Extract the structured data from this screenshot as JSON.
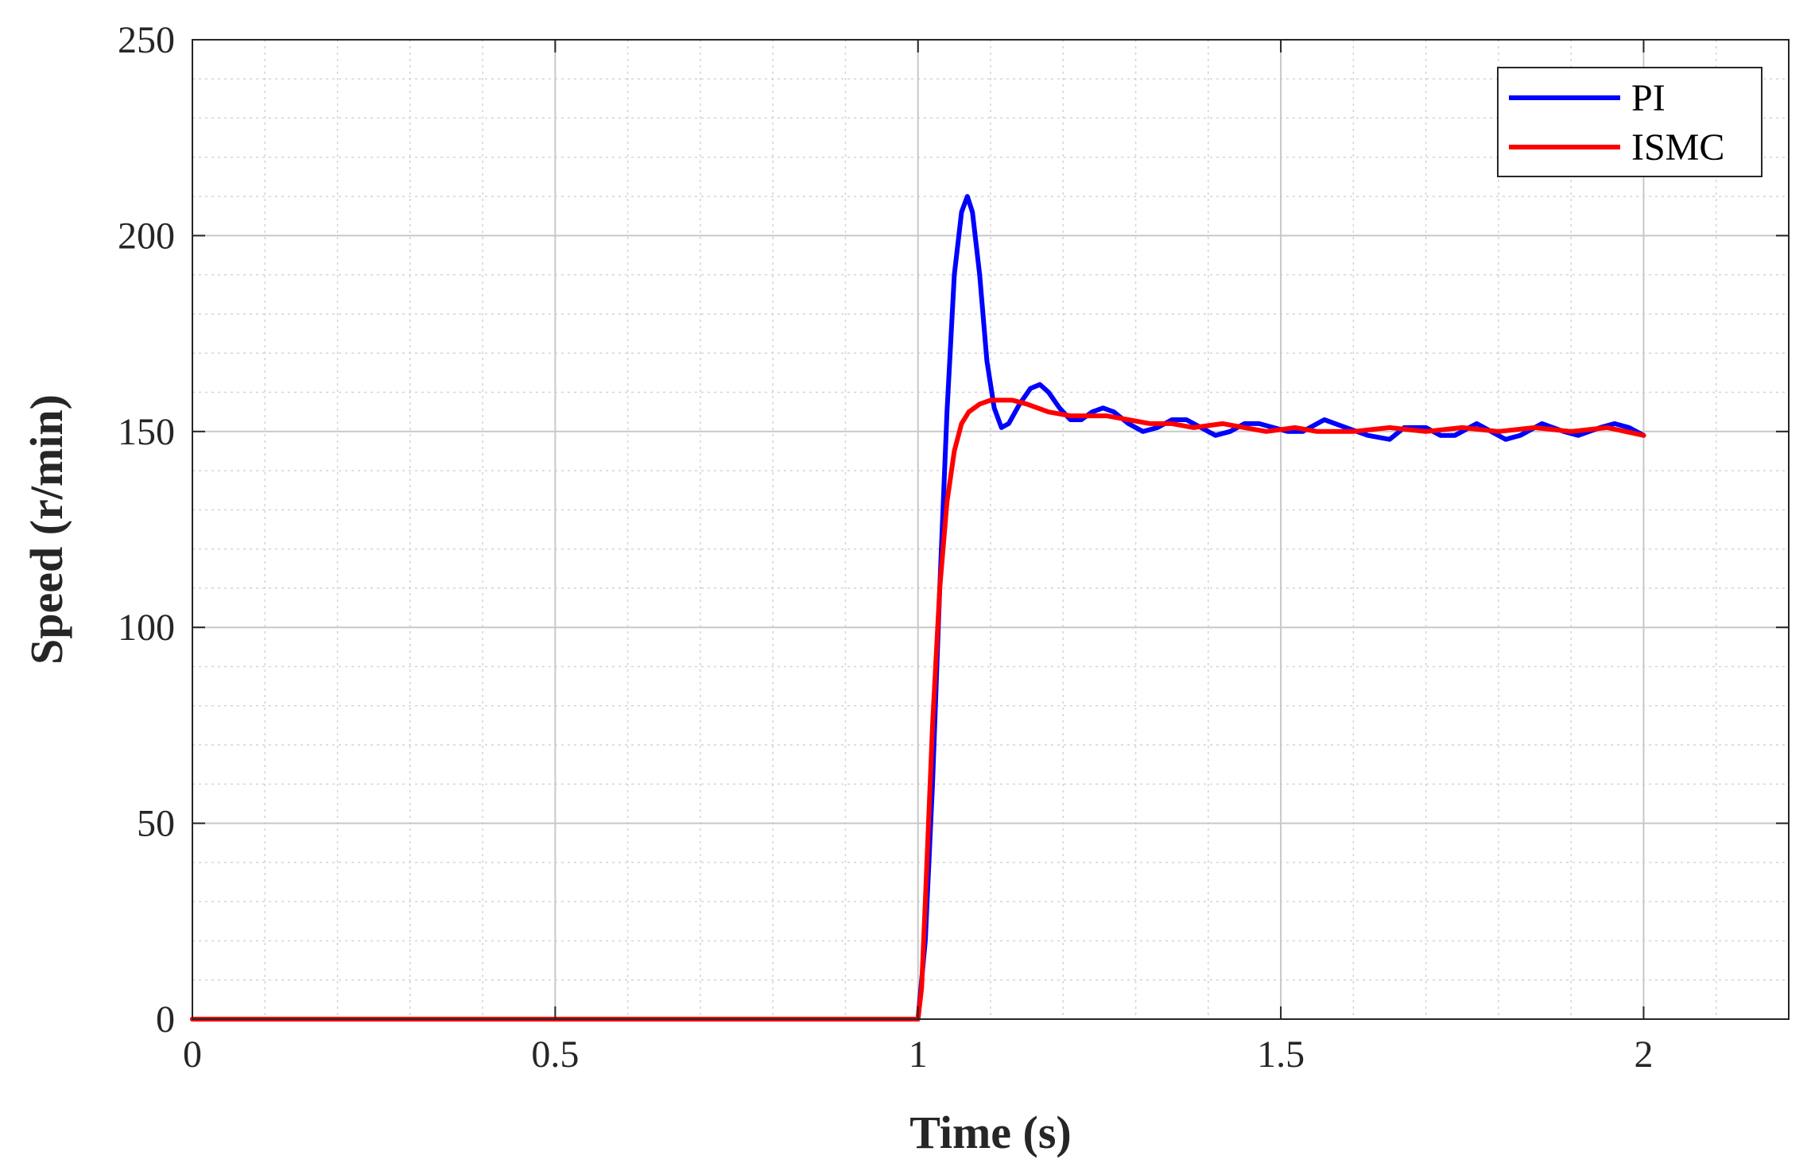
{
  "chart_data": {
    "type": "line",
    "title": "",
    "xlabel": "Time (s)",
    "ylabel": "Speed (r/min)",
    "xlim": [
      0,
      2.2
    ],
    "ylim": [
      0,
      250
    ],
    "x_ticks": [
      0,
      0.5,
      1,
      1.5,
      2
    ],
    "x_tick_labels": [
      "0",
      "0.5",
      "1",
      "1.5",
      "2"
    ],
    "y_ticks": [
      0,
      50,
      100,
      150,
      200,
      250
    ],
    "y_tick_labels": [
      "0",
      "50",
      "100",
      "150",
      "200",
      "250"
    ],
    "grid": true,
    "minor_grid": true,
    "legend_position": "top-right",
    "series": [
      {
        "name": "PI",
        "color": "#0000ff",
        "points": [
          [
            0,
            0
          ],
          [
            1.0,
            0
          ],
          [
            1.01,
            20
          ],
          [
            1.02,
            60
          ],
          [
            1.03,
            110
          ],
          [
            1.04,
            155
          ],
          [
            1.05,
            190
          ],
          [
            1.06,
            206
          ],
          [
            1.068,
            210
          ],
          [
            1.075,
            206
          ],
          [
            1.085,
            190
          ],
          [
            1.095,
            168
          ],
          [
            1.105,
            156
          ],
          [
            1.115,
            151
          ],
          [
            1.125,
            152
          ],
          [
            1.14,
            157
          ],
          [
            1.155,
            161
          ],
          [
            1.168,
            162
          ],
          [
            1.18,
            160
          ],
          [
            1.195,
            156
          ],
          [
            1.21,
            153
          ],
          [
            1.225,
            153
          ],
          [
            1.24,
            155
          ],
          [
            1.255,
            156
          ],
          [
            1.27,
            155
          ],
          [
            1.29,
            152
          ],
          [
            1.31,
            150
          ],
          [
            1.33,
            151
          ],
          [
            1.35,
            153
          ],
          [
            1.37,
            153
          ],
          [
            1.39,
            151
          ],
          [
            1.41,
            149
          ],
          [
            1.43,
            150
          ],
          [
            1.45,
            152
          ],
          [
            1.47,
            152
          ],
          [
            1.49,
            151
          ],
          [
            1.51,
            150
          ],
          [
            1.53,
            150
          ],
          [
            1.56,
            153
          ],
          [
            1.59,
            151
          ],
          [
            1.62,
            149
          ],
          [
            1.65,
            148
          ],
          [
            1.67,
            151
          ],
          [
            1.7,
            151
          ],
          [
            1.72,
            149
          ],
          [
            1.74,
            149
          ],
          [
            1.77,
            152
          ],
          [
            1.79,
            150
          ],
          [
            1.81,
            148
          ],
          [
            1.83,
            149
          ],
          [
            1.86,
            152
          ],
          [
            1.89,
            150
          ],
          [
            1.91,
            149
          ],
          [
            1.94,
            151
          ],
          [
            1.96,
            152
          ],
          [
            1.98,
            151
          ],
          [
            2.0,
            149
          ]
        ]
      },
      {
        "name": "ISMC",
        "color": "#ff0000",
        "points": [
          [
            0,
            0
          ],
          [
            1.0,
            0
          ],
          [
            1.005,
            8
          ],
          [
            1.01,
            30
          ],
          [
            1.02,
            75
          ],
          [
            1.03,
            110
          ],
          [
            1.04,
            132
          ],
          [
            1.05,
            145
          ],
          [
            1.06,
            152
          ],
          [
            1.07,
            155
          ],
          [
            1.085,
            157
          ],
          [
            1.1,
            158
          ],
          [
            1.13,
            158
          ],
          [
            1.15,
            157
          ],
          [
            1.18,
            155
          ],
          [
            1.21,
            154
          ],
          [
            1.24,
            154
          ],
          [
            1.26,
            154
          ],
          [
            1.29,
            153
          ],
          [
            1.32,
            152
          ],
          [
            1.35,
            152
          ],
          [
            1.38,
            151
          ],
          [
            1.42,
            152
          ],
          [
            1.45,
            151
          ],
          [
            1.48,
            150
          ],
          [
            1.52,
            151
          ],
          [
            1.55,
            150
          ],
          [
            1.6,
            150
          ],
          [
            1.65,
            151
          ],
          [
            1.7,
            150
          ],
          [
            1.75,
            151
          ],
          [
            1.8,
            150
          ],
          [
            1.85,
            151
          ],
          [
            1.9,
            150
          ],
          [
            1.95,
            151
          ],
          [
            2.0,
            149
          ]
        ]
      }
    ]
  }
}
